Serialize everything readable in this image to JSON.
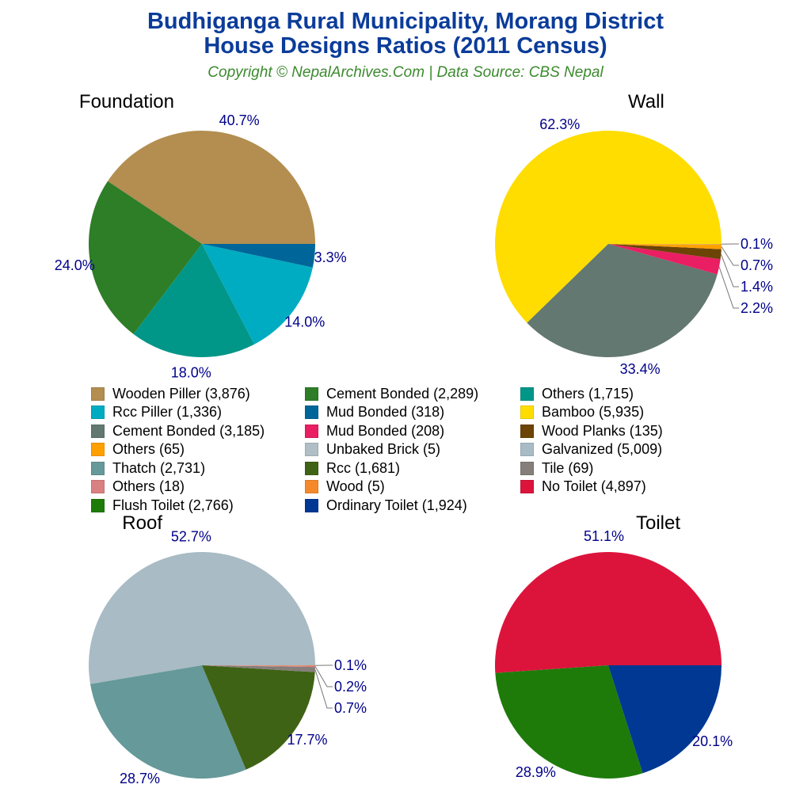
{
  "title_line1": "Budhiganga Rural Municipality, Morang District",
  "title_line2": "House Designs Ratios (2011 Census)",
  "subtitle": "Copyright © NepalArchives.Com | Data Source: CBS Nepal",
  "chart_data": [
    {
      "type": "pie",
      "title": "Foundation",
      "slices": [
        {
          "label": "Wooden Piller",
          "value": 3876,
          "percent": "40.7%",
          "color": "#B38E50"
        },
        {
          "label": "Cement Bonded",
          "value": 2289,
          "percent": "24.0%",
          "color": "#2E7D27"
        },
        {
          "label": "Others",
          "value": 1715,
          "percent": "18.0%",
          "color": "#009688"
        },
        {
          "label": "Rcc Piller",
          "value": 1336,
          "percent": "14.0%",
          "color": "#00ACC1"
        },
        {
          "label": "Mud Bonded",
          "value": 318,
          "percent": "3.3%",
          "color": "#006699"
        }
      ]
    },
    {
      "type": "pie",
      "title": "Wall",
      "slices": [
        {
          "label": "Bamboo",
          "value": 5935,
          "percent": "62.3%",
          "color": "#FFDD00"
        },
        {
          "label": "Cement Bonded",
          "value": 3185,
          "percent": "33.4%",
          "color": "#627870"
        },
        {
          "label": "Mud Bonded",
          "value": 208,
          "percent": "2.2%",
          "color": "#E91E63"
        },
        {
          "label": "Wood Planks",
          "value": 135,
          "percent": "1.4%",
          "color": "#6B4406"
        },
        {
          "label": "Others",
          "value": 65,
          "percent": "0.7%",
          "color": "#FFA000"
        },
        {
          "label": "Unbaked Brick",
          "value": 5,
          "percent": "0.1%",
          "color": "#B0BEC5"
        }
      ]
    },
    {
      "type": "pie",
      "title": "Roof",
      "slices": [
        {
          "label": "Galvanized",
          "value": 5009,
          "percent": "52.7%",
          "color": "#A9BBC4"
        },
        {
          "label": "Thatch",
          "value": 2731,
          "percent": "28.7%",
          "color": "#669999"
        },
        {
          "label": "Rcc",
          "value": 1681,
          "percent": "17.7%",
          "color": "#3F6314"
        },
        {
          "label": "Tile",
          "value": 69,
          "percent": "0.7%",
          "color": "#857E7B"
        },
        {
          "label": "Others",
          "value": 18,
          "percent": "0.2%",
          "color": "#D98080"
        },
        {
          "label": "Wood",
          "value": 5,
          "percent": "0.1%",
          "color": "#F5892A"
        }
      ]
    },
    {
      "type": "pie",
      "title": "Toilet",
      "slices": [
        {
          "label": "No Toilet",
          "value": 4897,
          "percent": "51.1%",
          "color": "#DC143C"
        },
        {
          "label": "Flush Toilet",
          "value": 2766,
          "percent": "28.9%",
          "color": "#1E7B0A"
        },
        {
          "label": "Ordinary Toilet",
          "value": 1924,
          "percent": "20.1%",
          "color": "#003893"
        }
      ]
    }
  ],
  "legend": [
    {
      "text": "Wooden Piller (3,876)",
      "color": "#B38E50"
    },
    {
      "text": "Cement Bonded (2,289)",
      "color": "#2E7D27"
    },
    {
      "text": "Others (1,715)",
      "color": "#009688"
    },
    {
      "text": "Rcc Piller (1,336)",
      "color": "#00ACC1"
    },
    {
      "text": "Mud Bonded (318)",
      "color": "#006699"
    },
    {
      "text": "Bamboo (5,935)",
      "color": "#FFDD00"
    },
    {
      "text": "Cement Bonded (3,185)",
      "color": "#627870"
    },
    {
      "text": "Mud Bonded (208)",
      "color": "#E91E63"
    },
    {
      "text": "Wood Planks (135)",
      "color": "#6B4406"
    },
    {
      "text": "Others (65)",
      "color": "#FFA000"
    },
    {
      "text": "Unbaked Brick (5)",
      "color": "#B0BEC5"
    },
    {
      "text": "Galvanized (5,009)",
      "color": "#A9BBC4"
    },
    {
      "text": "Thatch (2,731)",
      "color": "#669999"
    },
    {
      "text": "Rcc (1,681)",
      "color": "#3F6314"
    },
    {
      "text": "Tile (69)",
      "color": "#857E7B"
    },
    {
      "text": "Others (18)",
      "color": "#D98080"
    },
    {
      "text": "Wood (5)",
      "color": "#F5892A"
    },
    {
      "text": "No Toilet (4,897)",
      "color": "#DC143C"
    },
    {
      "text": "Flush Toilet (2,766)",
      "color": "#1E7B0A"
    },
    {
      "text": "Ordinary Toilet (1,924)",
      "color": "#003893"
    }
  ]
}
